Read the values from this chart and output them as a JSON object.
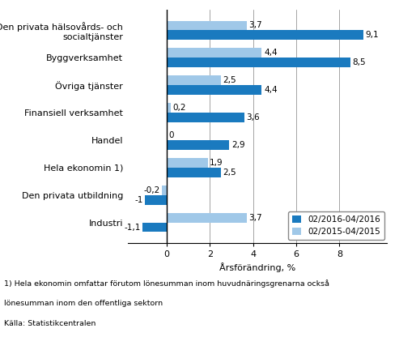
{
  "categories": [
    "Den privata hälsovårds- och\nsocialtjänster",
    "Byggverksamhet",
    "Övriga tjänster",
    "Finansiell verksamhet",
    "Handel",
    "Hela ekonomin 1)",
    "Den privata utbildning",
    "Industri"
  ],
  "series1_label": "02/2016-04/2016",
  "series2_label": "02/2015-04/2015",
  "series1_values": [
    9.1,
    8.5,
    4.4,
    3.6,
    2.9,
    2.5,
    -1.0,
    -1.1
  ],
  "series2_values": [
    3.7,
    4.4,
    2.5,
    0.2,
    0.0,
    1.9,
    -0.2,
    3.7
  ],
  "color1": "#1a7abf",
  "color2": "#a0c8e8",
  "xlabel": "Årsförändring, %",
  "xlim": [
    -1.8,
    10.2
  ],
  "xticks": [
    0,
    2,
    4,
    6,
    8
  ],
  "xtick_labels": [
    "0",
    "2",
    "4",
    "6",
    "8"
  ],
  "footnote1": "1) Hela ekonomin omfattar förutom lönesumman inom huvudnäringsgrenarna också",
  "footnote2": "lönesumman inom den offentliga sektorn",
  "footnote3": "Källa: Statistikcentralen",
  "bar_height": 0.35,
  "label_fontsize": 8.0,
  "value_fontsize": 7.5,
  "cat_fontsize": 8.0
}
